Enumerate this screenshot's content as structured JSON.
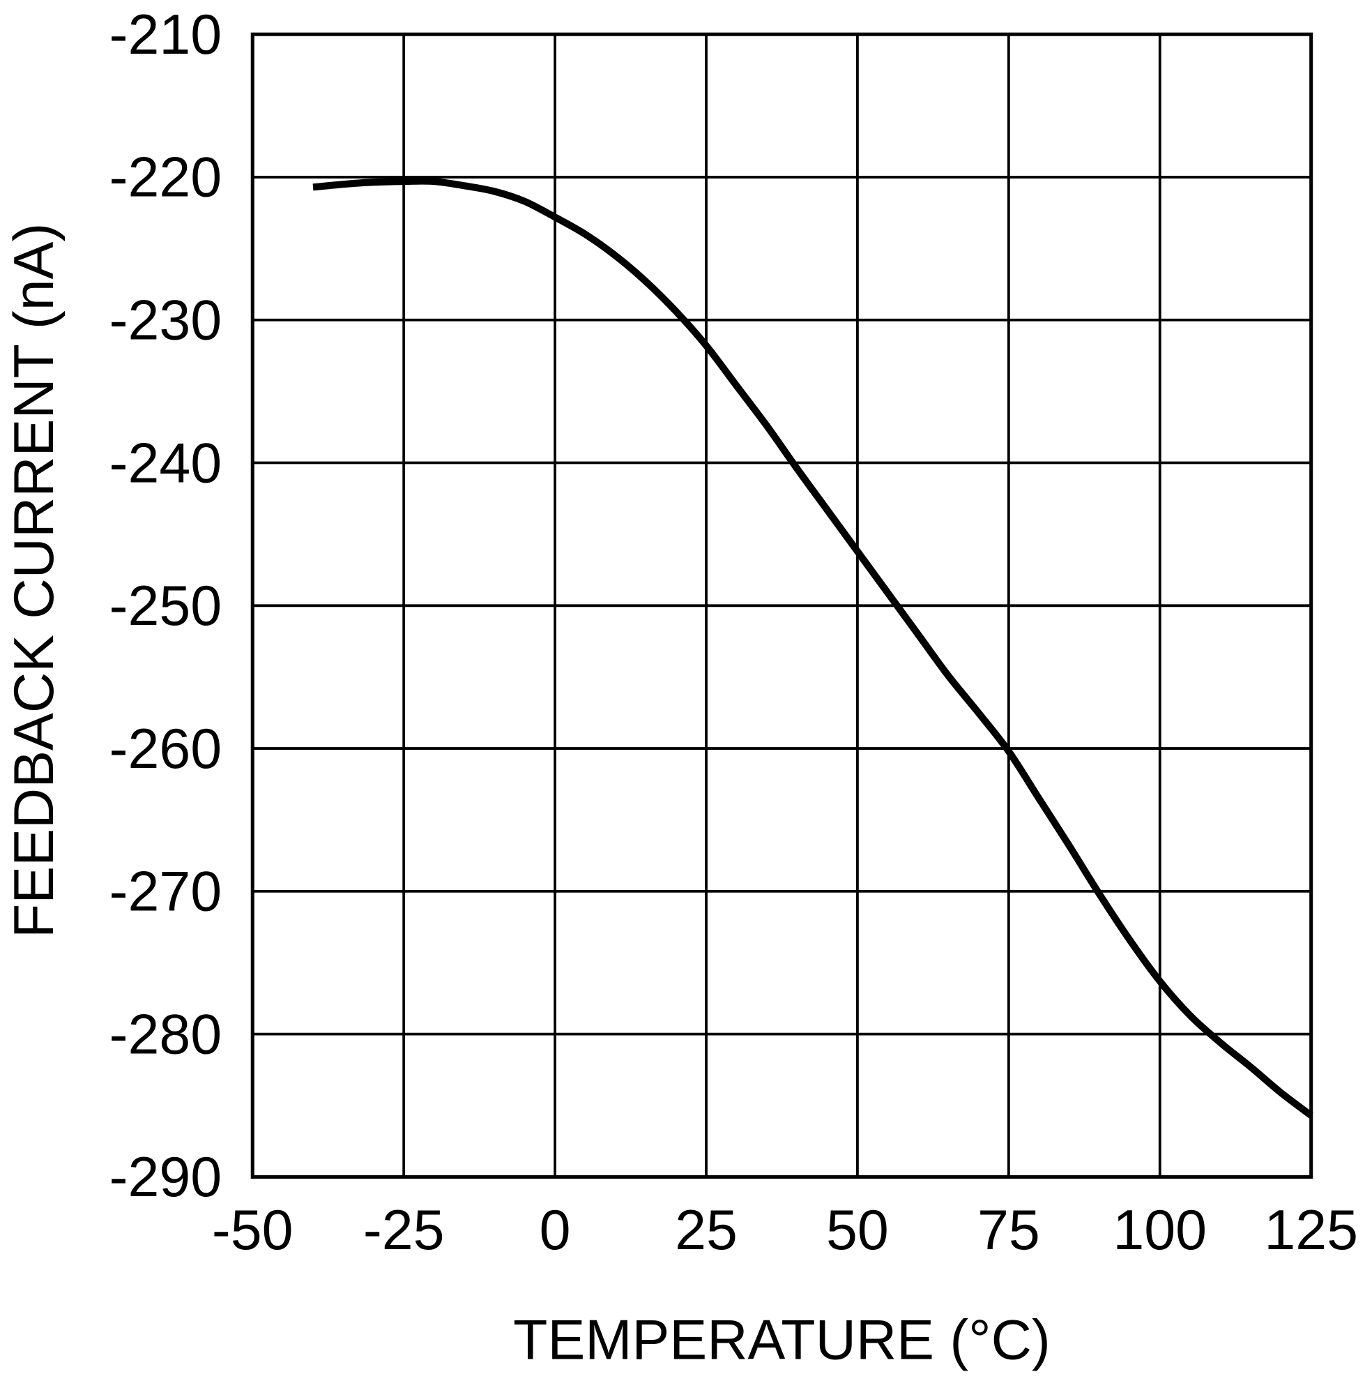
{
  "chart_data": {
    "type": "line",
    "title": "",
    "xlabel": "TEMPERATURE (°C)",
    "ylabel": "FEEDBACK CURRENT (nA)",
    "xlim": [
      -50,
      125
    ],
    "ylim": [
      -290,
      -210
    ],
    "xticks": [
      "-50",
      "-25",
      "0",
      "25",
      "50",
      "75",
      "100",
      "125"
    ],
    "yticks": [
      "-210",
      "-220",
      "-230",
      "-240",
      "-250",
      "-260",
      "-270",
      "-280",
      "-290"
    ],
    "grid": true,
    "line_color": "#000000",
    "series": [
      {
        "x": [
          -40,
          -32,
          -25,
          -20,
          -15,
          -10,
          -5,
          0,
          5,
          10,
          15,
          20,
          25,
          30,
          35,
          40,
          45,
          50,
          55,
          60,
          65,
          70,
          75,
          80,
          85,
          90,
          95,
          100,
          105,
          110,
          115,
          120,
          125
        ],
        "y": [
          -220.7,
          -220.4,
          -220.3,
          -220.3,
          -220.6,
          -221.0,
          -221.7,
          -222.8,
          -224.0,
          -225.5,
          -227.3,
          -229.4,
          -231.8,
          -234.6,
          -237.4,
          -240.4,
          -243.3,
          -246.2,
          -249.1,
          -252.0,
          -254.9,
          -257.5,
          -260.2,
          -263.5,
          -266.8,
          -270.2,
          -273.4,
          -276.3,
          -278.7,
          -280.6,
          -282.3,
          -284.1,
          -285.7
        ]
      }
    ]
  }
}
